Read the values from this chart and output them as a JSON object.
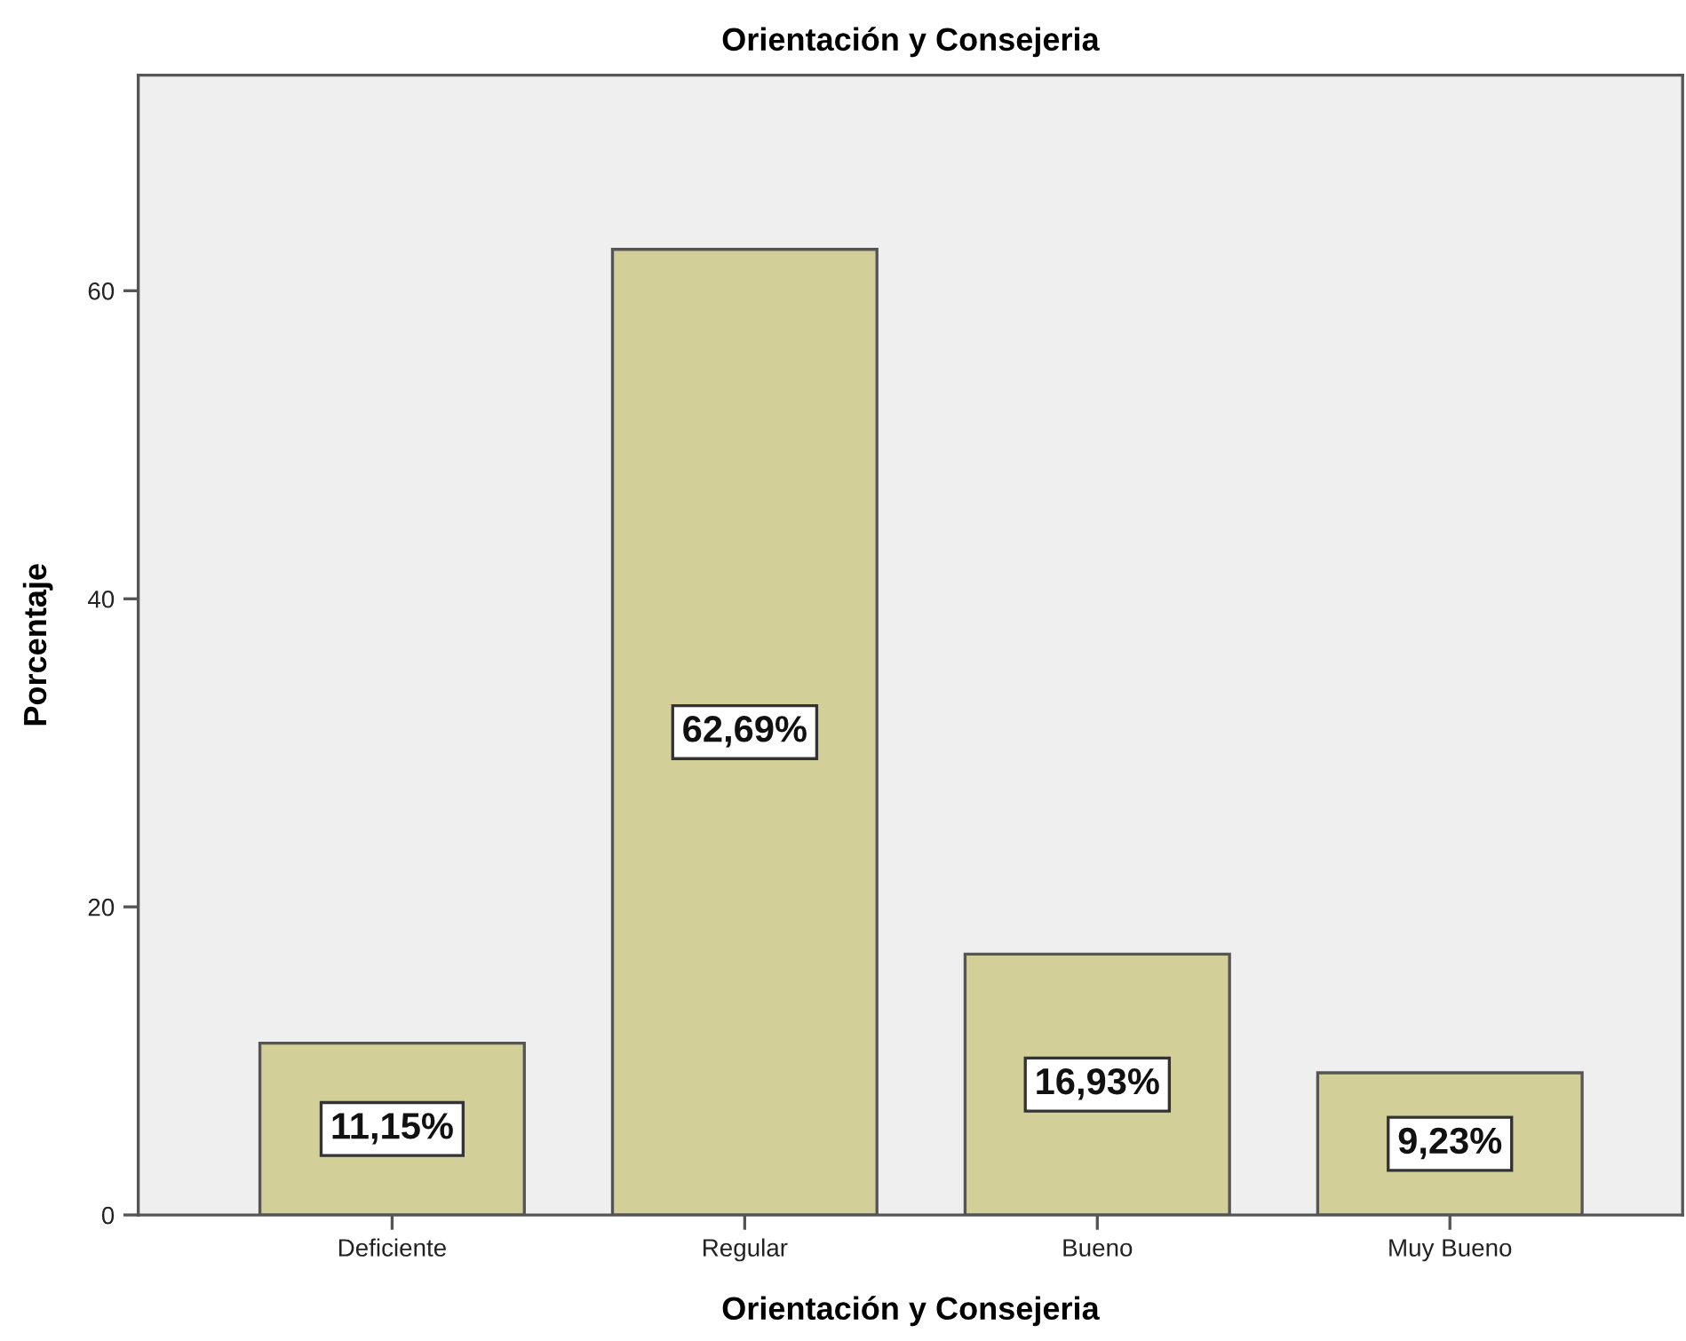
{
  "chart_data": {
    "type": "bar",
    "title": "Orientación y Consejeria",
    "xlabel": "Orientación y Consejeria",
    "ylabel": "Porcentaje",
    "categories": [
      "Deficiente",
      "Regular",
      "Bueno",
      "Muy Bueno"
    ],
    "values": [
      11.15,
      62.69,
      16.93,
      9.23
    ],
    "color": "#d3cf98",
    "value_labels": [
      "11,15%",
      "62,69%",
      "16,93%",
      "9,23%"
    ],
    "ylim": [
      0,
      74
    ],
    "yticks": [
      0,
      20,
      40,
      60
    ],
    "grid": false,
    "legend": false
  }
}
